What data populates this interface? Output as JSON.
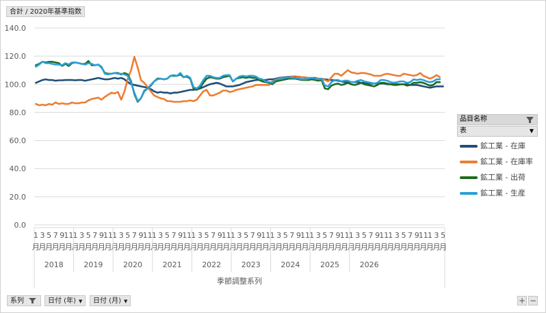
{
  "value_field": "合計 / 2020年基準指数",
  "legend": {
    "header": "品目名称",
    "selector": "表",
    "items": [
      {
        "label": "鉱工業 - 在庫",
        "color": "#1f4e79"
      },
      {
        "label": "鉱工業 - 在庫率",
        "color": "#ed7d31"
      },
      {
        "label": "鉱工業 - 出荷",
        "color": "#1e6b1e"
      },
      {
        "label": "鉱工業 - 生産",
        "color": "#2a9fd8"
      }
    ]
  },
  "bottom_fields": [
    "系列",
    "日付 (年)",
    "日付 (月)"
  ],
  "zoom": {
    "plus": "+",
    "minus": "−"
  },
  "chart_data": {
    "type": "line",
    "xlabel": "季節調整系列",
    "ylim": [
      0,
      140
    ],
    "yticks": [
      "0.0",
      "20.0",
      "40.0",
      "60.0",
      "80.0",
      "100.0",
      "120.0",
      "140.0"
    ],
    "month_tick_labels": [
      "1",
      "3",
      "5",
      "7",
      "9",
      "11"
    ],
    "month_unit": "月",
    "years": [
      "2018",
      "2019",
      "2020",
      "2021",
      "2022",
      "2023",
      "2024",
      "2025",
      "2026"
    ],
    "series": [
      {
        "name": "鉱工業 - 在庫",
        "color": "#1f4e79",
        "values": [
          101,
          102,
          103,
          103.5,
          103,
          103,
          102.5,
          102.8,
          102.8,
          103,
          103,
          103,
          102.8,
          103,
          103,
          102.5,
          103,
          103.5,
          104,
          104.5,
          104,
          103.5,
          103.5,
          104,
          104.5,
          104,
          104.5,
          103.5,
          101.5,
          100,
          99.5,
          99,
          98.5,
          98,
          97.5,
          96.5,
          95,
          94,
          94.5,
          94,
          94,
          93.5,
          94,
          94,
          94.5,
          95,
          95.5,
          96,
          96,
          96.5,
          97,
          98,
          99,
          100,
          100.5,
          101,
          100.5,
          99.5,
          98.5,
          98.5,
          98.5,
          99,
          99.5,
          100.5,
          101.5,
          102,
          102.5,
          103,
          103,
          103,
          103,
          103.5,
          103.5,
          104,
          104.5,
          104.8,
          105,
          105.3,
          105.5,
          105.5,
          105.3,
          105,
          104.8,
          104.5,
          104.5,
          104.5,
          104,
          103.8,
          103.5,
          103.2,
          103,
          102.8,
          102.5,
          102,
          101.5,
          101.5,
          101.5,
          101.5,
          101.5,
          101,
          101,
          100.5,
          100.5,
          100.5,
          100.5,
          100.5,
          100.5,
          100,
          100,
          100,
          100,
          100,
          100,
          100,
          99.5,
          99.5,
          99.5,
          99,
          98.5,
          98,
          97.5,
          98,
          98.5,
          98.5,
          98.5
        ]
      },
      {
        "name": "鉱工業 - 在庫率",
        "color": "#ed7d31",
        "values": [
          86,
          85,
          85.5,
          85,
          86,
          85.5,
          87,
          86,
          86.5,
          86,
          86,
          87,
          86.5,
          86.5,
          87,
          87,
          88.5,
          89.5,
          90,
          90.5,
          89,
          91,
          92.5,
          94,
          93.5,
          94.5,
          89,
          95,
          104,
          110,
          119.5,
          112,
          103,
          101,
          98,
          95,
          92,
          91,
          90,
          89.5,
          88,
          88,
          87.5,
          87.5,
          87.5,
          88,
          88,
          88.5,
          88,
          89,
          92,
          95,
          96,
          92,
          92,
          93,
          94,
          95.5,
          95.5,
          94.5,
          95,
          96,
          96.5,
          97,
          97.5,
          98,
          98.5,
          99.5,
          99.5,
          99.5,
          99.5,
          99.5,
          102,
          103.5,
          104,
          104.5,
          104.5,
          105,
          105.5,
          105,
          105.5,
          105,
          105,
          104.5,
          104.5,
          104,
          104,
          104,
          103,
          102,
          105,
          107.5,
          107.5,
          106,
          108,
          110,
          108.5,
          108,
          107.5,
          108,
          108,
          107.5,
          107,
          106,
          106,
          106,
          107,
          107.5,
          107,
          106.5,
          106,
          106,
          107.5,
          107,
          106.5,
          106,
          106.5,
          108,
          106,
          105,
          104,
          105,
          106.5,
          105
        ]
      },
      {
        "name": "鉱工業 - 出荷",
        "color": "#1e6b1e",
        "values": [
          113.5,
          114.5,
          116,
          115.5,
          116,
          116,
          115.5,
          115,
          113,
          114.5,
          113,
          115,
          115.5,
          115,
          114.5,
          114.5,
          116.5,
          113.5,
          113.5,
          114,
          112,
          108,
          107.5,
          107.5,
          108,
          108,
          107,
          108,
          107,
          102,
          93,
          87.5,
          90,
          95,
          97,
          99,
          102,
          104,
          104,
          103.5,
          104,
          106,
          106,
          106,
          107,
          105,
          105.5,
          104,
          97,
          96,
          97.5,
          101,
          104,
          105,
          104.5,
          104,
          104,
          105,
          105.5,
          106,
          102,
          104,
          104.5,
          105,
          104.5,
          105,
          104.5,
          104.5,
          103,
          102,
          101.5,
          101,
          100,
          102,
          102.5,
          103,
          103.5,
          104,
          104,
          104,
          103.5,
          103,
          103,
          103,
          103.5,
          103,
          102.5,
          103,
          97,
          96.5,
          99,
          100,
          100.5,
          99.5,
          100,
          101,
          100,
          99.5,
          100,
          101,
          100,
          99.5,
          99,
          98.5,
          99.5,
          101,
          101,
          100.5,
          100,
          99.5,
          99.5,
          100,
          100,
          99,
          99.5,
          101,
          101,
          101.5,
          101,
          100,
          99,
          99.5,
          101.5,
          101.5
        ]
      },
      {
        "name": "鉱工業 - 生産",
        "color": "#2a9fd8",
        "values": [
          112.5,
          114,
          116,
          115,
          115,
          114.5,
          114,
          114,
          113.5,
          115,
          114,
          115.5,
          115.5,
          115,
          114.5,
          114,
          115,
          114.5,
          113.5,
          114,
          112.5,
          107.5,
          107,
          107.5,
          108,
          107.5,
          107.5,
          107,
          106,
          101,
          94,
          88,
          90,
          95.5,
          97,
          99.5,
          102,
          103.5,
          104,
          103.5,
          104,
          106,
          106.5,
          106,
          108,
          105,
          106,
          104.5,
          98,
          97,
          99,
          103,
          106,
          106,
          105,
          104.5,
          104.5,
          106,
          106.5,
          106.5,
          102,
          104,
          105.5,
          106,
          105.5,
          106,
          106,
          105.5,
          104,
          103.5,
          102,
          101.5,
          101,
          103.5,
          103.5,
          104,
          104.5,
          105,
          104.5,
          104.5,
          104,
          103.5,
          103.5,
          104,
          104.5,
          104,
          103.5,
          104,
          99,
          98.5,
          101.5,
          103,
          103,
          102,
          102.5,
          102.5,
          101.5,
          101.5,
          102.5,
          103,
          102,
          101.5,
          101,
          100.5,
          101,
          103,
          103,
          102.5,
          101.5,
          101,
          101.5,
          102,
          102,
          101,
          101.5,
          103.5,
          103,
          103.5,
          103,
          102,
          101.5,
          102,
          103.5,
          103.5
        ]
      }
    ]
  }
}
